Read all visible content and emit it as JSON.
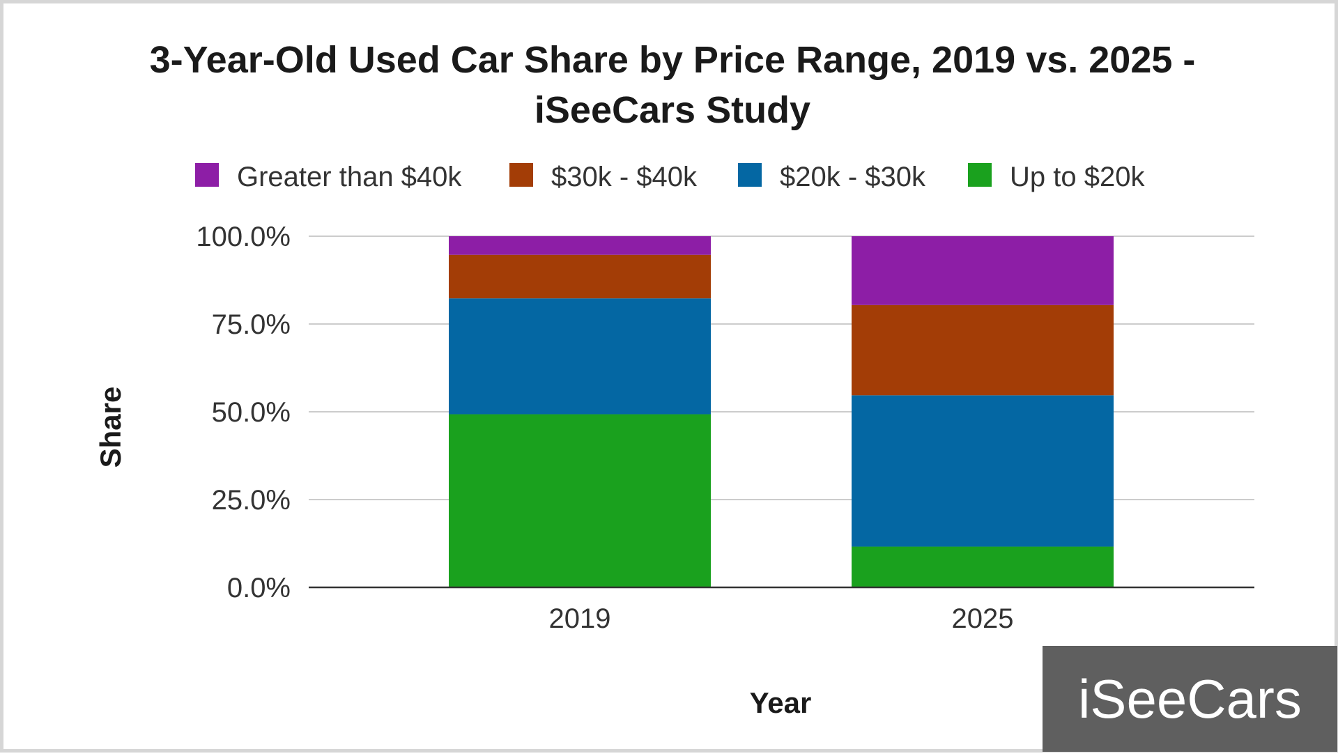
{
  "chart_data": {
    "type": "bar",
    "stacked": true,
    "title_lines": [
      "3-Year-Old Used Car Share by Price Range, 2019 vs. 2025 -",
      "iSeeCars Study"
    ],
    "xlabel": "Year",
    "ylabel": "Share",
    "categories": [
      "2019",
      "2025"
    ],
    "ylim": [
      0,
      100
    ],
    "yticks": [
      0,
      25,
      50,
      75,
      100
    ],
    "ytick_labels": [
      "0.0%",
      "25.0%",
      "50.0%",
      "75.0%",
      "100.0%"
    ],
    "legend_position": "top",
    "grid": true,
    "series": [
      {
        "name": "Up to $20k",
        "color": "#1aa11e",
        "values": [
          49.3,
          11.6
        ]
      },
      {
        "name": "$20k - $30k",
        "color": "#0467a3",
        "values": [
          33.0,
          43.1
        ]
      },
      {
        "name": "$30k - $40k",
        "color": "#a33d06",
        "values": [
          12.4,
          25.7
        ]
      },
      {
        "name": "Greater than $40k",
        "color": "#8d1ea6",
        "values": [
          5.3,
          19.6
        ]
      }
    ],
    "legend_order": [
      "Greater than $40k",
      "$30k - $40k",
      "$20k - $30k",
      "Up to $20k"
    ]
  },
  "watermark": {
    "text": "iSeeCars",
    "background": "#5f5f5f"
  }
}
